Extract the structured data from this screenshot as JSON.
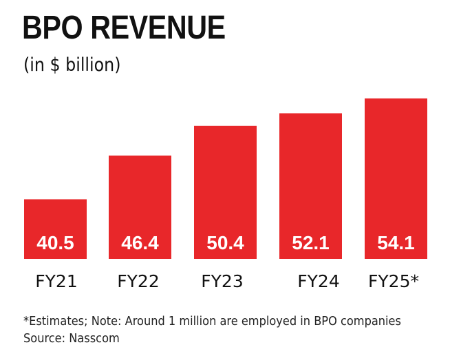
{
  "header": {
    "title": "BPO REVENUE",
    "subtitle": "(in $ billion)"
  },
  "chart_data": {
    "type": "bar",
    "title": "BPO REVENUE",
    "subtitle": "(in $ billion)",
    "categories": [
      "FY21",
      "FY22",
      "FY23",
      "FY24",
      "FY25*"
    ],
    "values": [
      40.5,
      46.4,
      50.4,
      52.1,
      54.1
    ],
    "data_labels": [
      "40.5",
      "46.4",
      "50.4",
      "52.1",
      "54.1"
    ],
    "bar_color": "#e8272a",
    "label_color": "#ffffff",
    "grid": false,
    "legend": "none",
    "axes_visible": false
  },
  "footer": {
    "note": "*Estimates; Note: Around 1 million are employed in BPO companies",
    "source": "Source: Nasscom"
  }
}
